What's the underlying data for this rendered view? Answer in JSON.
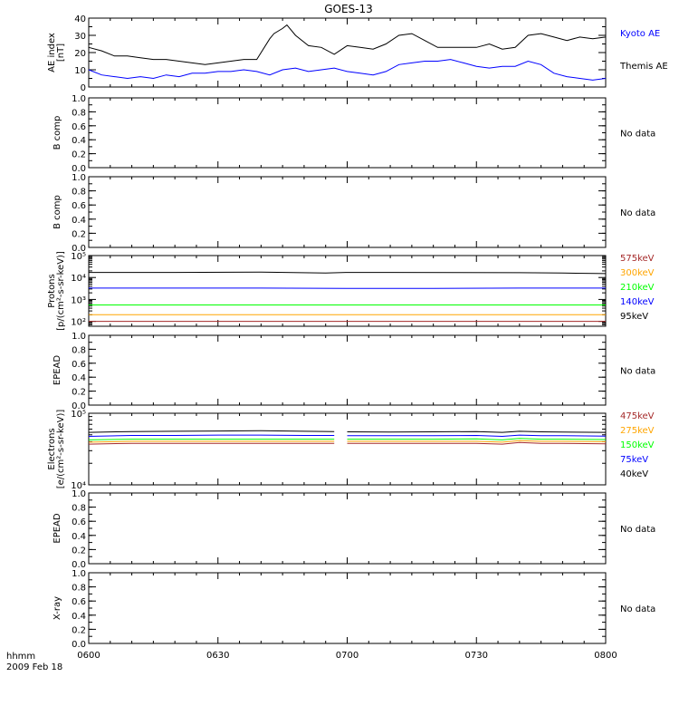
{
  "chart_data": {
    "title": "GOES-13",
    "x_axis": {
      "label": "hhmm",
      "date": "2009 Feb 18",
      "ticks": [
        "0600",
        "0630",
        "0700",
        "0730",
        "0800"
      ],
      "range_minutes": [
        0,
        120
      ],
      "tick_minutes": [
        0,
        30,
        60,
        90,
        120
      ]
    },
    "panels": [
      {
        "id": "ae",
        "type": "line",
        "ylabel": "AE index",
        "yunit": "[nT]",
        "ylim": [
          0,
          40
        ],
        "yticks": [
          "0",
          "10",
          "20",
          "30",
          "40"
        ],
        "ytick_values": [
          0,
          10,
          20,
          30,
          40
        ],
        "minor_step": 5,
        "series": [
          {
            "name": "Kyoto AE",
            "color": "#0000ff",
            "x": [
              0,
              3,
              6,
              9,
              12,
              15,
              18,
              21,
              24,
              27,
              30,
              33,
              36,
              39,
              42,
              45,
              48,
              51,
              54,
              57,
              60,
              63,
              66,
              69,
              72,
              75,
              78,
              81,
              84,
              87,
              90,
              93,
              96,
              99,
              102,
              105,
              108,
              111,
              114,
              117,
              120
            ],
            "y": [
              10,
              7,
              6,
              5,
              6,
              5,
              7,
              6,
              8,
              8,
              9,
              9,
              10,
              9,
              7,
              10,
              11,
              9,
              10,
              11,
              9,
              8,
              7,
              9,
              13,
              14,
              15,
              15,
              16,
              14,
              12,
              11,
              12,
              12,
              15,
              13,
              8,
              6,
              5,
              4,
              5
            ]
          },
          {
            "name": "Themis AE",
            "color": "#000000",
            "x": [
              0,
              3,
              6,
              9,
              12,
              15,
              18,
              21,
              24,
              27,
              30,
              33,
              36,
              39,
              42,
              43,
              45,
              46,
              48,
              51,
              54,
              57,
              60,
              63,
              66,
              69,
              72,
              75,
              78,
              81,
              84,
              87,
              90,
              93,
              96,
              99,
              102,
              105,
              108,
              111,
              114,
              117,
              120
            ],
            "y": [
              23,
              21,
              18,
              18,
              17,
              16,
              16,
              15,
              14,
              13,
              14,
              15,
              16,
              16,
              28,
              31,
              34,
              36,
              30,
              24,
              23,
              19,
              24,
              23,
              22,
              25,
              30,
              31,
              27,
              23,
              23,
              23,
              23,
              25,
              22,
              23,
              30,
              31,
              29,
              27,
              29,
              28,
              29
            ]
          }
        ]
      },
      {
        "id": "bcomp1",
        "type": "empty",
        "ylabel": "B comp",
        "ylim": [
          0,
          1
        ],
        "yticks": [
          "0.0",
          "0.2",
          "0.4",
          "0.6",
          "0.8",
          "1.0"
        ],
        "ytick_values": [
          0,
          0.2,
          0.4,
          0.6,
          0.8,
          1.0
        ],
        "minor_step": 0.1,
        "note": "No data"
      },
      {
        "id": "bcomp2",
        "type": "empty",
        "ylabel": "B comp",
        "ylim": [
          0,
          1
        ],
        "yticks": [
          "0.0",
          "0.2",
          "0.4",
          "0.6",
          "0.8",
          "1.0"
        ],
        "ytick_values": [
          0,
          0.2,
          0.4,
          0.6,
          0.8,
          1.0
        ],
        "minor_step": 0.1,
        "note": "No data"
      },
      {
        "id": "protons",
        "type": "line",
        "log": true,
        "ylabel": "Protons",
        "yunit": "[p/(cm²-s-sr-keV)]",
        "ylim": [
          60,
          100000
        ],
        "yticks": [
          "10²",
          "10³",
          "10⁴",
          "10⁵"
        ],
        "ytick_values": [
          100,
          1000,
          10000,
          100000
        ],
        "series": [
          {
            "name": "575keV",
            "color": "#a52a2a",
            "x": [
              0,
              20,
              40,
              60,
              80,
              100,
              120
            ],
            "y": [
              100,
              100,
              100,
              100,
              100,
              100,
              100
            ]
          },
          {
            "name": "300keV",
            "color": "#ffa500",
            "x": [
              0,
              20,
              40,
              60,
              80,
              100,
              120
            ],
            "y": [
              200,
              200,
              200,
              200,
              200,
              200,
              200
            ]
          },
          {
            "name": "210keV",
            "color": "#00ff00",
            "x": [
              0,
              20,
              40,
              60,
              80,
              100,
              120
            ],
            "y": [
              560,
              560,
              560,
              560,
              560,
              560,
              560
            ]
          },
          {
            "name": "140keV",
            "color": "#0000ff",
            "x": [
              0,
              20,
              40,
              60,
              80,
              100,
              120
            ],
            "y": [
              3300,
              3300,
              3300,
              3200,
              3200,
              3300,
              3300
            ]
          },
          {
            "name": "95keV",
            "color": "#000000",
            "x": [
              0,
              20,
              40,
              55,
              60,
              70,
              100,
              110,
              120
            ],
            "y": [
              17000,
              17000,
              17500,
              16000,
              17000,
              17000,
              16500,
              16000,
              15000
            ]
          }
        ]
      },
      {
        "id": "epead1",
        "type": "empty",
        "ylabel": "EPEAD",
        "ylim": [
          0,
          1
        ],
        "yticks": [
          "0.0",
          "0.2",
          "0.4",
          "0.6",
          "0.8",
          "1.0"
        ],
        "ytick_values": [
          0,
          0.2,
          0.4,
          0.6,
          0.8,
          1.0
        ],
        "minor_step": 0.1,
        "note": "No data"
      },
      {
        "id": "electrons",
        "type": "line",
        "log": true,
        "ylabel": "Electrons",
        "yunit": "[e/(cm²-s-sr-keV)]",
        "ylim": [
          10000,
          100000
        ],
        "yticks": [
          "10⁴",
          "10⁵"
        ],
        "ytick_values": [
          10000,
          100000
        ],
        "gap_minutes": [
          57.5,
          59.5
        ],
        "series": [
          {
            "name": "475keV",
            "color": "#a52a2a",
            "x": [
              0,
              10,
              20,
              30,
              40,
              50,
              57,
              60,
              70,
              80,
              90,
              96,
              100,
              105,
              110,
              120
            ],
            "y": [
              37000,
              38000,
              38000,
              38000,
              38000,
              38000,
              38000,
              38000,
              38000,
              38000,
              38000,
              37000,
              39000,
              38000,
              38000,
              37500
            ]
          },
          {
            "name": "275keV",
            "color": "#ffa500",
            "x": [
              0,
              10,
              20,
              30,
              40,
              50,
              57,
              60,
              70,
              80,
              90,
              96,
              100,
              105,
              110,
              120
            ],
            "y": [
              39500,
              40500,
              40500,
              40500,
              40500,
              40500,
              40500,
              40500,
              40500,
              40500,
              40500,
              39500,
              41500,
              40500,
              40500,
              40000
            ]
          },
          {
            "name": "150keV",
            "color": "#00ff00",
            "x": [
              0,
              10,
              20,
              30,
              40,
              50,
              57,
              60,
              70,
              80,
              90,
              96,
              100,
              105,
              110,
              120
            ],
            "y": [
              42500,
              43500,
              43500,
              43500,
              43500,
              43500,
              43500,
              43500,
              43500,
              43500,
              44000,
              42500,
              44500,
              43500,
              43500,
              43000
            ]
          },
          {
            "name": "75keV",
            "color": "#0000ff",
            "x": [
              0,
              10,
              20,
              30,
              40,
              50,
              57,
              60,
              70,
              80,
              90,
              96,
              100,
              105,
              110,
              120
            ],
            "y": [
              47500,
              49000,
              49000,
              49500,
              49500,
              49000,
              49000,
              48500,
              48500,
              48500,
              49000,
              47500,
              49500,
              48500,
              48500,
              48000
            ]
          },
          {
            "name": "40keV",
            "color": "#000000",
            "x": [
              0,
              10,
              20,
              30,
              40,
              50,
              57,
              60,
              70,
              80,
              90,
              96,
              100,
              105,
              110,
              120
            ],
            "y": [
              54000,
              55500,
              56000,
              56500,
              57000,
              56000,
              55500,
              55000,
              54500,
              55000,
              55500,
              54000,
              56000,
              55000,
              54500,
              54000
            ]
          }
        ]
      },
      {
        "id": "epead2",
        "type": "empty",
        "ylabel": "EPEAD",
        "ylim": [
          0,
          1
        ],
        "yticks": [
          "0.0",
          "0.2",
          "0.4",
          "0.6",
          "0.8",
          "1.0"
        ],
        "ytick_values": [
          0,
          0.2,
          0.4,
          0.6,
          0.8,
          1.0
        ],
        "minor_step": 0.1,
        "note": "No data"
      },
      {
        "id": "xray",
        "type": "empty",
        "ylabel": "X-ray",
        "ylim": [
          0,
          1
        ],
        "yticks": [
          "0.0",
          "0.2",
          "0.4",
          "0.6",
          "0.8",
          "1.0"
        ],
        "ytick_values": [
          0,
          0.2,
          0.4,
          0.6,
          0.8,
          1.0
        ],
        "minor_step": 0.1,
        "note": "No data"
      }
    ]
  }
}
